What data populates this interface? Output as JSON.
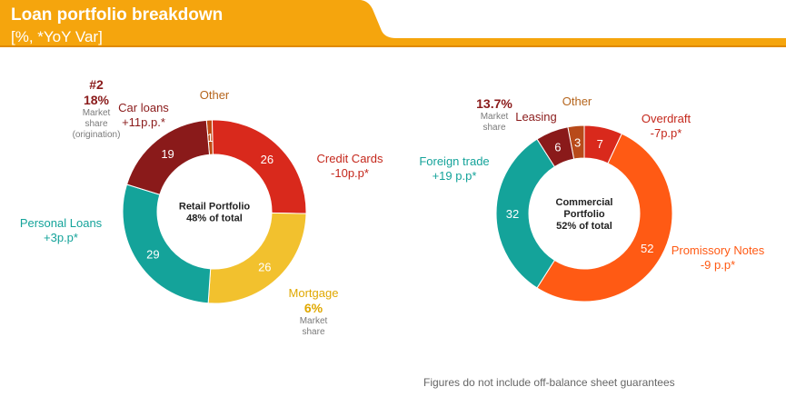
{
  "header": {
    "title": "Loan portfolio breakdown",
    "subtitle": "[%, *YoY Var]"
  },
  "colors": {
    "header_orange": "#f5a50d",
    "header_dark": "#e08a00",
    "credit_cards": "#d9291c",
    "mortgage": "#f2c12e",
    "personal_loans": "#14a39a",
    "car_loans": "#8a1a1a",
    "other_retail": "#c14a12",
    "overdraft": "#d9291c",
    "promissory": "#ff5a14",
    "foreign_trade": "#14a39a",
    "leasing": "#8a1a1a",
    "other_commercial": "#b84a1a"
  },
  "chart_data": [
    {
      "type": "pie",
      "variant": "donut",
      "title": "Retail Portfolio",
      "subtitle": "48% of total",
      "slices": [
        {
          "name": "Other",
          "value": 1,
          "label": "1"
        },
        {
          "name": "Credit Cards",
          "value": 26,
          "label": "26",
          "yoy": "-10p.p*"
        },
        {
          "name": "Mortgage",
          "value": 26,
          "label": "26",
          "market_share": "6%",
          "market_share_note": "Market share"
        },
        {
          "name": "Personal Loans",
          "value": 29,
          "label": "29",
          "yoy": "+3p.p*"
        },
        {
          "name": "Car loans",
          "value": 19,
          "label": "19",
          "yoy": "+11p.p.*",
          "rank": "#2",
          "market_share": "18%",
          "market_share_note": "Market share (origination)"
        }
      ]
    },
    {
      "type": "pie",
      "variant": "donut",
      "title": "Commercial Portfolio",
      "subtitle": "52% of total",
      "slices": [
        {
          "name": "Other",
          "value": 3,
          "label": "3"
        },
        {
          "name": "Overdraft",
          "value": 7,
          "label": "7",
          "yoy": "-7p.p*"
        },
        {
          "name": "Promissory Notes",
          "value": 52,
          "label": "52",
          "yoy": "-9 p.p*"
        },
        {
          "name": "Foreign trade",
          "value": 32,
          "label": "32",
          "yoy": "+19 p.p*"
        },
        {
          "name": "Leasing",
          "value": 6,
          "label": "6",
          "market_share": "13.7%",
          "market_share_note": "Market share"
        }
      ]
    }
  ],
  "labels": {
    "retail_other": "Other",
    "retail_cc_name": "Credit Cards",
    "retail_cc_yoy": "-10p.p*",
    "retail_mort_name": "Mortgage",
    "retail_mort_share": "6%",
    "retail_mort_note1": "Market",
    "retail_mort_note2": "share",
    "retail_pl_name": "Personal Loans",
    "retail_pl_yoy": "+3p.p*",
    "retail_car_rank": "#2",
    "retail_car_share": "18%",
    "retail_car_note1": "Market",
    "retail_car_note2": "share",
    "retail_car_note3": "(origination)",
    "retail_car_name": "Car loans",
    "retail_car_yoy": "+11p.p.*",
    "com_other": "Other",
    "com_od_name": "Overdraft",
    "com_od_yoy": "-7p.p*",
    "com_pn_name": "Promissory Notes",
    "com_pn_yoy": "-9 p.p*",
    "com_ft_name": "Foreign trade",
    "com_ft_yoy": "+19 p.p*",
    "com_lease_share": "13.7%",
    "com_lease_note1": "Market",
    "com_lease_note2": "share",
    "com_lease_name": "Leasing"
  },
  "footnote": "Figures do not include off-balance sheet guarantees"
}
